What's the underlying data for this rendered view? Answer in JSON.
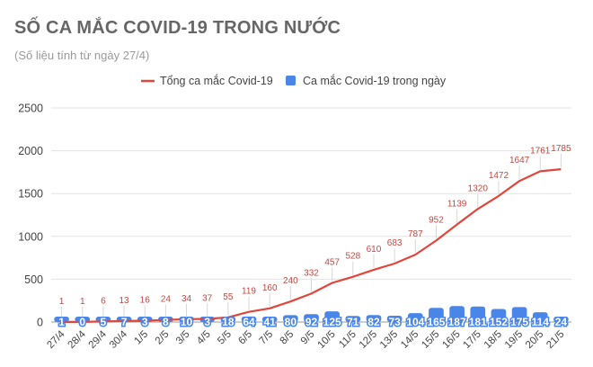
{
  "colors": {
    "line": "#e0463c",
    "bar": "#4a86e8",
    "grid": "#e3e3e3",
    "axis_text": "#444444",
    "title": "#666666"
  },
  "chart_data": {
    "type": "bar",
    "title": "SỐ CA MẮC COVID-19 TRONG NƯỚC",
    "subtitle": "(Số liệu tính từ ngày 27/4)",
    "xlabel": "",
    "ylabel": "",
    "ylim": [
      0,
      2500
    ],
    "yticks": [
      0,
      500,
      1000,
      1500,
      2000,
      2500
    ],
    "grid": true,
    "legend_position": "top",
    "categories": [
      "27/4",
      "28/4",
      "29/4",
      "30/4",
      "1/5",
      "2/5",
      "3/5",
      "4/5",
      "5/5",
      "6/5",
      "7/5",
      "8/5",
      "9/5",
      "10/5",
      "11/5",
      "12/5",
      "13/5",
      "14/5",
      "15/5",
      "16/5",
      "17/5",
      "18/5",
      "19/5",
      "20/5",
      "21/5"
    ],
    "series": [
      {
        "name": "Tổng ca mắc Covid-19",
        "type": "line",
        "values": [
          1,
          1,
          6,
          13,
          16,
          24,
          34,
          37,
          55,
          119,
          160,
          240,
          332,
          457,
          528,
          610,
          683,
          787,
          952,
          1139,
          1320,
          1472,
          1647,
          1761,
          1785
        ]
      },
      {
        "name": "Ca mắc Covid-19 trong ngày",
        "type": "bar",
        "values": [
          1,
          0,
          5,
          7,
          3,
          8,
          10,
          3,
          18,
          64,
          41,
          80,
          92,
          125,
          71,
          82,
          73,
          104,
          165,
          187,
          181,
          152,
          175,
          114,
          24
        ]
      }
    ]
  }
}
